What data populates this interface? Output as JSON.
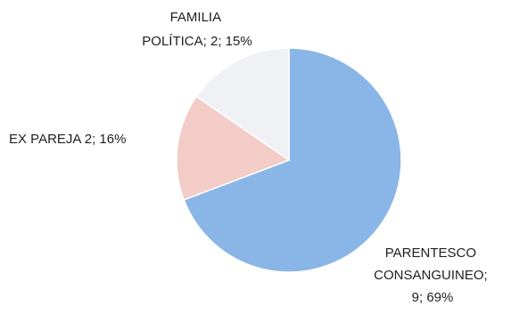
{
  "chart_data": {
    "type": "pie",
    "start_angle_deg": 0,
    "direction": "clockwise",
    "slices": [
      {
        "category": "PARENTESCO CONSANGUINEO",
        "value": 9,
        "percent": "69%",
        "color": "#89b6e6",
        "label_lines": [
          "PARENTESCO",
          "CONSANGUINEO;",
          "9; 69%"
        ]
      },
      {
        "category": "EX PAREJA",
        "value": 2,
        "percent": "16%",
        "color": "#f3cbc7",
        "label_lines": [
          "EX PAREJA 2; 16%"
        ]
      },
      {
        "category": "FAMILIA POLÍTICA",
        "value": 2,
        "percent": "15%",
        "color": "#eff1f5",
        "label_lines": [
          "FAMILIA",
          "POLÍTICA; 2; 15%"
        ]
      }
    ]
  }
}
